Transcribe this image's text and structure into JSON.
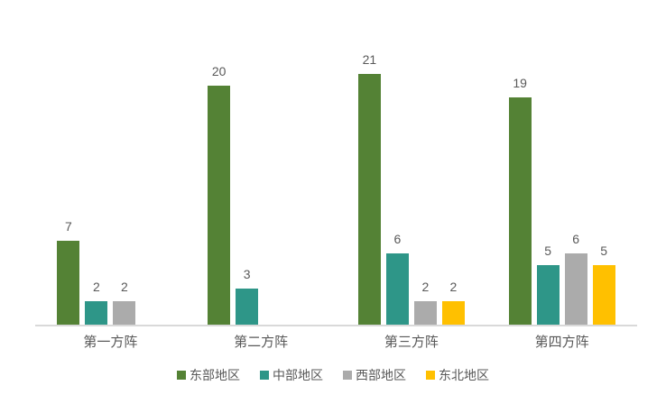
{
  "chart_data": {
    "type": "bar",
    "title": "",
    "categories": [
      "第一方阵",
      "第二方阵",
      "第三方阵",
      "第四方阵"
    ],
    "series": [
      {
        "name": "东部地区",
        "color": "#548235",
        "values": [
          7,
          20,
          21,
          19
        ]
      },
      {
        "name": "中部地区",
        "color": "#2E9688",
        "values": [
          2,
          3,
          6,
          5
        ]
      },
      {
        "name": "西部地区",
        "color": "#ABABAB",
        "values": [
          2,
          null,
          2,
          6
        ]
      },
      {
        "name": "东北地区",
        "color": "#FFC000",
        "values": [
          null,
          null,
          2,
          5
        ]
      }
    ],
    "ylim": [
      0,
      21
    ],
    "grid": false,
    "y_axis_visible": false,
    "data_labels": true,
    "legend_position": "bottom"
  },
  "colors": {
    "axis_line": "#D9D9D9",
    "label_text": "#595959",
    "background": "#FFFFFF"
  }
}
